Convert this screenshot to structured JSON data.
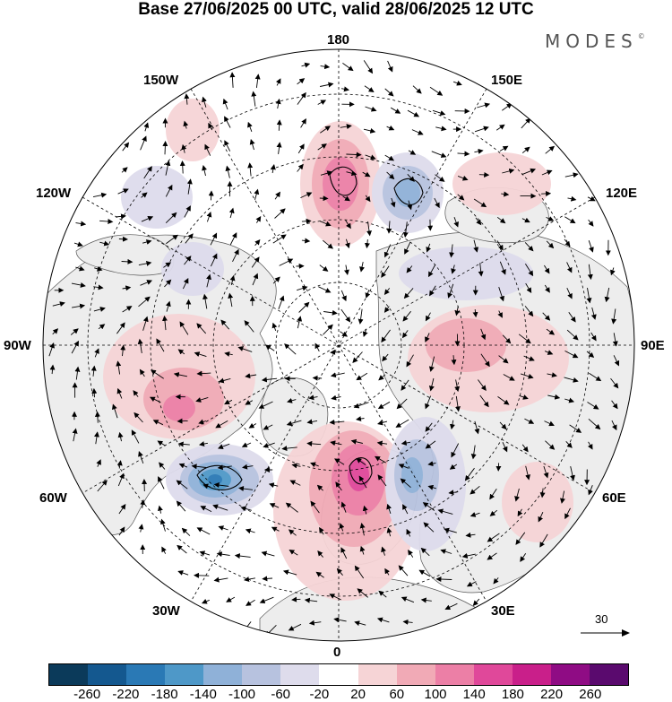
{
  "title": "Base 27/06/2025 00 UTC, valid 28/06/2025 12 UTC",
  "brand": "MODES",
  "brand_mark": "©",
  "longitude_labels": {
    "lon_180": "180",
    "lon_150E": "150E",
    "lon_120E": "120E",
    "lon_90E": "90E",
    "lon_60E": "60E",
    "lon_30E": "30E",
    "lon_0": "0",
    "lon_30W": "30W",
    "lon_60W": "60W",
    "lon_90W": "90W",
    "lon_120W": "120W",
    "lon_150W": "150W"
  },
  "reference_vector": {
    "value": "30"
  },
  "colorbar": {
    "labels": [
      "-260",
      "-220",
      "-180",
      "-140",
      "-100",
      "-60",
      "-20",
      "20",
      "60",
      "100",
      "140",
      "180",
      "220",
      "260"
    ],
    "colors": [
      "#0b3a5a",
      "#14588f",
      "#2a79b5",
      "#4e98c8",
      "#8fb1d8",
      "#b7c2df",
      "#dedcec",
      "#ffffff",
      "#f6d4d6",
      "#f1aab6",
      "#ec7fa6",
      "#e0489a",
      "#c91f8a",
      "#8f0c84",
      "#5a0a6e"
    ]
  },
  "map": {
    "projection": "north-polar-stereographic",
    "land_color": "#ededed",
    "ocean_color": "#ffffff"
  }
}
